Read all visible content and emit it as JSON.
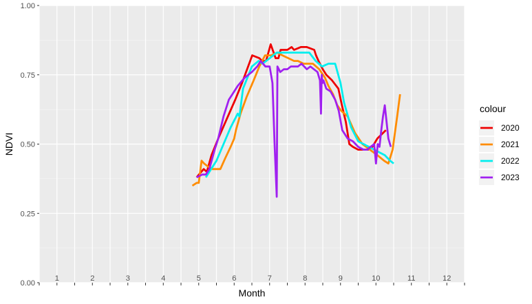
{
  "chart_data": {
    "type": "line",
    "title": "",
    "xlabel": "Month",
    "ylabel": "NDVI",
    "xlim": [
      0.5,
      12.5
    ],
    "ylim": [
      0,
      1
    ],
    "y_ticks": [
      "0.00",
      "0.25",
      "0.50",
      "0.75",
      "1.00"
    ],
    "y_tick_values": [
      0,
      0.25,
      0.5,
      0.75,
      1.0
    ],
    "month_labels": [
      "1",
      "2",
      "3",
      "4",
      "5",
      "6",
      "7",
      "8",
      "9",
      "10",
      "11",
      "12"
    ],
    "grid": true,
    "panel_background": "#ebebeb",
    "legend": {
      "title": "colour",
      "position": "right"
    },
    "series": [
      {
        "name": "2020",
        "color": "#ee0000",
        "x": [
          4.94,
          5.07,
          5.14,
          5.23,
          5.36,
          5.55,
          5.79,
          6.03,
          6.22,
          6.51,
          6.71,
          6.79,
          6.9,
          7.03,
          7.17,
          7.25,
          7.31,
          7.5,
          7.62,
          7.69,
          7.88,
          8.05,
          8.26,
          8.31,
          8.38,
          8.5,
          8.6,
          8.76,
          8.94,
          9.04,
          9.15,
          9.25,
          9.35,
          9.5,
          9.66,
          9.78,
          9.9,
          10.04,
          10.2,
          10.28
        ],
        "y": [
          0.38,
          0.4,
          0.41,
          0.4,
          0.46,
          0.52,
          0.59,
          0.66,
          0.72,
          0.82,
          0.81,
          0.8,
          0.8,
          0.86,
          0.81,
          0.81,
          0.84,
          0.84,
          0.85,
          0.84,
          0.85,
          0.85,
          0.84,
          0.82,
          0.8,
          0.77,
          0.75,
          0.73,
          0.7,
          0.64,
          0.58,
          0.5,
          0.49,
          0.48,
          0.48,
          0.48,
          0.49,
          0.52,
          0.54,
          0.55
        ]
      },
      {
        "name": "2021",
        "color": "#ff8c00",
        "x": [
          4.82,
          4.94,
          5.0,
          5.08,
          5.15,
          5.25,
          5.38,
          5.59,
          5.61,
          5.75,
          5.9,
          6.0,
          6.05,
          6.18,
          6.35,
          6.55,
          6.71,
          6.87,
          7.04,
          7.22,
          7.36,
          7.53,
          7.69,
          7.8,
          7.96,
          8.04,
          8.22,
          8.4,
          8.56,
          8.66,
          8.79,
          8.91,
          9.02,
          9.2,
          9.41,
          9.62,
          9.83,
          10.04,
          10.23,
          10.35,
          10.47,
          10.6,
          10.68
        ],
        "y": [
          0.35,
          0.36,
          0.36,
          0.44,
          0.43,
          0.42,
          0.41,
          0.41,
          0.41,
          0.45,
          0.49,
          0.52,
          0.55,
          0.61,
          0.67,
          0.73,
          0.78,
          0.82,
          0.82,
          0.83,
          0.82,
          0.81,
          0.8,
          0.8,
          0.79,
          0.79,
          0.79,
          0.77,
          0.74,
          0.71,
          0.68,
          0.64,
          0.62,
          0.6,
          0.54,
          0.5,
          0.48,
          0.46,
          0.44,
          0.43,
          0.48,
          0.6,
          0.68
        ]
      },
      {
        "name": "2022",
        "color": "#00eeee",
        "x": [
          5.2,
          5.35,
          5.5,
          5.7,
          5.9,
          6.1,
          6.15,
          6.17,
          6.25,
          6.5,
          6.69,
          6.8,
          7.0,
          7.2,
          7.4,
          7.6,
          7.8,
          7.95,
          8.12,
          8.3,
          8.48,
          8.66,
          8.85,
          9.0,
          9.1,
          9.3,
          9.5,
          9.65,
          9.8,
          9.95,
          10.1,
          10.25,
          10.4,
          10.5
        ],
        "y": [
          0.38,
          0.41,
          0.44,
          0.5,
          0.56,
          0.61,
          0.6,
          0.62,
          0.7,
          0.78,
          0.8,
          0.79,
          0.81,
          0.83,
          0.83,
          0.83,
          0.83,
          0.83,
          0.83,
          0.8,
          0.78,
          0.79,
          0.79,
          0.72,
          0.65,
          0.56,
          0.51,
          0.5,
          0.49,
          0.48,
          0.47,
          0.46,
          0.44,
          0.43
        ]
      },
      {
        "name": "2023",
        "color": "#a020f0",
        "x": [
          4.94,
          5.1,
          5.2,
          5.3,
          5.45,
          5.55,
          5.7,
          5.85,
          5.95,
          6.1,
          6.3,
          6.5,
          6.65,
          6.75,
          6.88,
          7.0,
          7.08,
          7.14,
          7.2,
          7.22,
          7.3,
          7.4,
          7.5,
          7.6,
          7.7,
          7.8,
          7.9,
          8.05,
          8.15,
          8.25,
          8.35,
          8.42,
          8.45,
          8.47,
          8.49,
          8.52,
          8.6,
          8.72,
          8.85,
          8.95,
          9.05,
          9.2,
          9.35,
          9.5,
          9.65,
          9.75,
          9.85,
          9.95,
          10.0,
          10.05,
          10.1,
          10.15,
          10.2,
          10.25,
          10.3,
          10.35,
          10.42
        ],
        "y": [
          0.38,
          0.39,
          0.39,
          0.41,
          0.48,
          0.52,
          0.6,
          0.66,
          0.68,
          0.71,
          0.74,
          0.76,
          0.78,
          0.8,
          0.78,
          0.78,
          0.72,
          0.5,
          0.31,
          0.78,
          0.76,
          0.77,
          0.77,
          0.78,
          0.78,
          0.78,
          0.79,
          0.77,
          0.78,
          0.77,
          0.76,
          0.73,
          0.61,
          0.75,
          0.72,
          0.73,
          0.7,
          0.69,
          0.66,
          0.62,
          0.55,
          0.52,
          0.51,
          0.49,
          0.48,
          0.48,
          0.49,
          0.5,
          0.43,
          0.5,
          0.49,
          0.55,
          0.6,
          0.64,
          0.58,
          0.52,
          0.49
        ]
      }
    ]
  }
}
